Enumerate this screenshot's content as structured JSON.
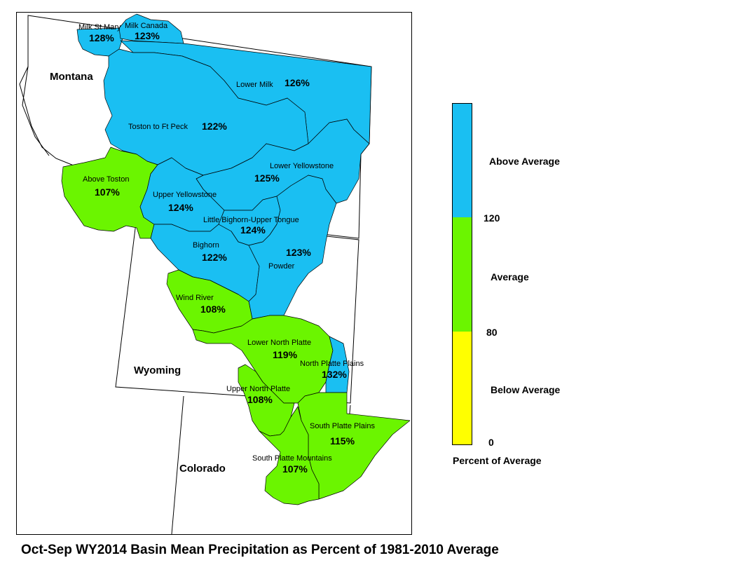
{
  "caption": "Oct-Sep WY2014 Basin Mean Precipitation as Percent of 1981-2010 Average",
  "states": {
    "montana": "Montana",
    "wyoming": "Wyoming",
    "colorado": "Colorado"
  },
  "colors": {
    "above": "#1ABFF2",
    "average": "#6BF500",
    "below": "#FFFF00"
  },
  "legend": {
    "title": "Percent of Average",
    "categories": [
      {
        "label": "Above Average",
        "color": "#1ABFF2",
        "min": 120
      },
      {
        "label": "Average",
        "color": "#6BF500",
        "min": 80,
        "max": 120
      },
      {
        "label": "Below Average",
        "color": "#FFFF00",
        "min": 0,
        "max": 80
      }
    ],
    "ticks": [
      "120",
      "80",
      "0"
    ]
  },
  "basins": [
    {
      "id": "milk-st-mary",
      "name": "Milk St Mary",
      "pct": "128%",
      "category": "above"
    },
    {
      "id": "milk-canada",
      "name": "Milk Canada",
      "pct": "123%",
      "category": "above"
    },
    {
      "id": "lower-milk",
      "name": "Lower Milk",
      "pct": "126%",
      "category": "above"
    },
    {
      "id": "toston-ft-peck",
      "name": "Toston to Ft Peck",
      "pct": "122%",
      "category": "above"
    },
    {
      "id": "above-toston",
      "name": "Above Toston",
      "pct": "107%",
      "category": "average"
    },
    {
      "id": "lower-yellowstone",
      "name": "Lower Yellowstone",
      "pct": "125%",
      "category": "above"
    },
    {
      "id": "upper-yellowstone",
      "name": "Upper Yellowstone",
      "pct": "124%",
      "category": "above"
    },
    {
      "id": "little-bighorn-upper-tongue",
      "name": "Little Bighorn-Upper Tongue",
      "pct": "124%",
      "category": "above"
    },
    {
      "id": "bighorn",
      "name": "Bighorn",
      "pct": "122%",
      "category": "above"
    },
    {
      "id": "powder",
      "name": "Powder",
      "pct": "123%",
      "category": "above"
    },
    {
      "id": "wind-river",
      "name": "Wind River",
      "pct": "108%",
      "category": "average"
    },
    {
      "id": "lower-north-platte",
      "name": "Lower North Platte",
      "pct": "119%",
      "category": "average"
    },
    {
      "id": "north-platte-plains",
      "name": "North Platte Plains",
      "pct": "132%",
      "category": "above"
    },
    {
      "id": "upper-north-platte",
      "name": "Upper North Platte",
      "pct": "108%",
      "category": "average"
    },
    {
      "id": "south-platte-plains",
      "name": "South Platte Plains",
      "pct": "115%",
      "category": "average"
    },
    {
      "id": "south-platte-mountains",
      "name": "South Platte Mountains",
      "pct": "107%",
      "category": "average"
    }
  ]
}
